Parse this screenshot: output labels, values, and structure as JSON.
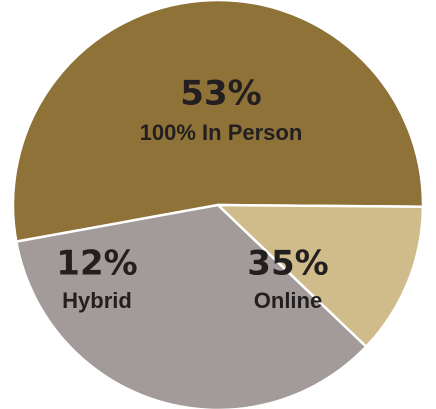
{
  "chart_data": {
    "type": "pie",
    "title": "",
    "slices": [
      {
        "label": "100% In Person",
        "value": 53,
        "value_label": "53%",
        "color": "#8e7238"
      },
      {
        "label": "Online",
        "value": 35,
        "value_label": "35%",
        "color": "#a29b9a"
      },
      {
        "label": "Hybrid",
        "value": 12,
        "value_label": "12%",
        "color": "#d0bb8a"
      }
    ],
    "labels_inside_slices": true,
    "legend": "none",
    "slice_separator_color": "#ffffff"
  }
}
